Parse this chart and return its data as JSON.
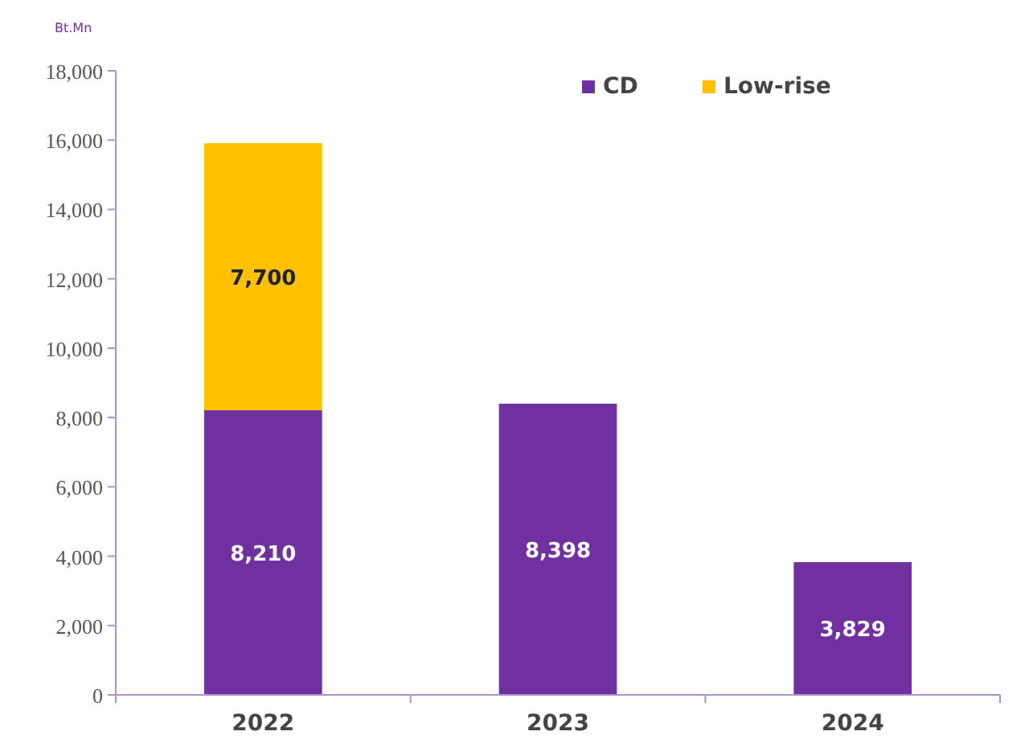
{
  "chart_data": {
    "type": "bar",
    "ylabel": "Bt.Mn",
    "categories": [
      "2022",
      "2023",
      "2024"
    ],
    "stacked": true,
    "series": [
      {
        "name": "CD",
        "color": "#7030a0",
        "values": [
          8210,
          8398,
          3829
        ],
        "value_labels": [
          "8,210",
          "8,398",
          "3,829"
        ]
      },
      {
        "name": "Low-rise",
        "color": "#ffc000",
        "values": [
          7700,
          null,
          null
        ],
        "value_labels": [
          "7,700",
          null,
          null
        ]
      }
    ],
    "ylim": [
      0,
      18000
    ],
    "yticks": [
      {
        "value": 0,
        "label": "0"
      },
      {
        "value": 2000,
        "label": "2,000"
      },
      {
        "value": 4000,
        "label": "4,000"
      },
      {
        "value": 6000,
        "label": "6,000"
      },
      {
        "value": 8000,
        "label": "8,000"
      },
      {
        "value": 10000,
        "label": "10,000"
      },
      {
        "value": 12000,
        "label": "12,000"
      },
      {
        "value": 14000,
        "label": "14,000"
      },
      {
        "value": 16000,
        "label": "16,000"
      },
      {
        "value": 18000,
        "label": "18,000"
      }
    ],
    "grid": false,
    "legend": "top right"
  }
}
